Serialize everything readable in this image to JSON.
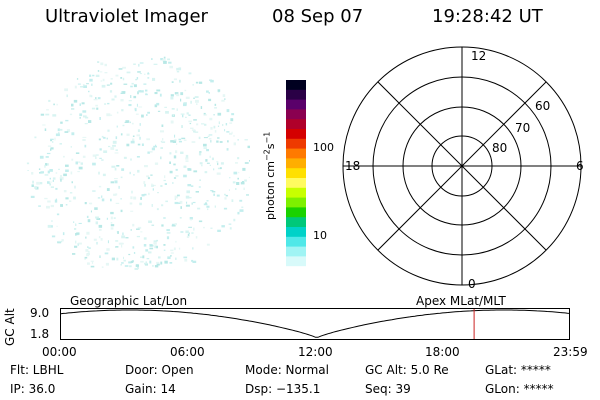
{
  "header": {
    "instrument": "Ultraviolet Imager",
    "date": "08 Sep 07",
    "time": "19:28:42 UT"
  },
  "colorbar": {
    "label": "photon cm^-2 s^-1",
    "ticks": [
      "100",
      "10"
    ],
    "colors": [
      "#000020",
      "#2a0046",
      "#5a006a",
      "#8a0050",
      "#b0002a",
      "#d40000",
      "#ee3a00",
      "#ff7a00",
      "#ffae00",
      "#ffe000",
      "#fffb60",
      "#c8ff00",
      "#7ef000",
      "#1ad200",
      "#00c87a",
      "#00d2c8",
      "#50e8e8",
      "#a0f4f4",
      "#d8fafa",
      "#ffffff"
    ]
  },
  "polar": {
    "mlt_labels": [
      "12",
      "18",
      "6",
      "0"
    ],
    "lat_labels": [
      "60",
      "70",
      "80"
    ]
  },
  "timeline": {
    "axis_label": "GC Alt",
    "y_ticks": [
      "9.0",
      "1.8"
    ],
    "left_title": "Geographic Lat/Lon",
    "right_title": "Apex MLat/MLT",
    "x_ticks": [
      "00:00",
      "06:00",
      "12:00",
      "18:00",
      "23:59"
    ],
    "marker_time": "19:28"
  },
  "info": {
    "row1": {
      "flt": "Flt: LBHL",
      "door": "Door: Open",
      "mode": "Mode: Normal",
      "gcalt": "GC Alt: 5.0 Re",
      "glat": "GLat: *****"
    },
    "row2": {
      "ip": "IP: 36.0",
      "gain": "Gain: 14",
      "dsp": "Dsp: −135.1",
      "seq": "Seq: 39",
      "glon": "GLon: *****"
    }
  }
}
